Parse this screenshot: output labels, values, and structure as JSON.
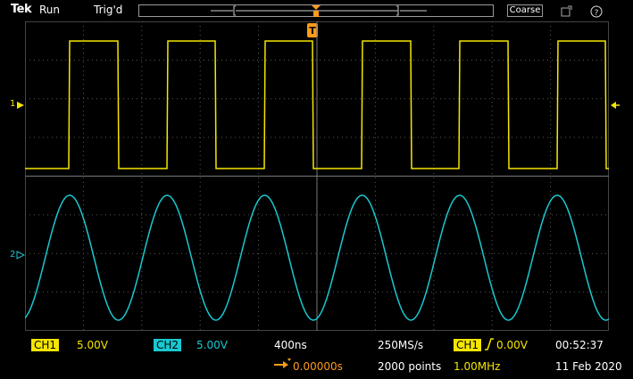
{
  "topbar": {
    "brand": "Tek",
    "acq_state": "Run",
    "trig_state": "Trig'd",
    "coarse_label": "Coarse"
  },
  "channels": {
    "ch1_marker": "1",
    "ch2_marker": "2"
  },
  "bottombar": {
    "ch1_label": "CH1",
    "ch1_scale": "5.00V",
    "ch2_label": "CH2",
    "ch2_scale": "5.00V",
    "timebase": "400ns",
    "delay": "0.00000s",
    "sample_rate": "250MS/s",
    "record_length": "2000 points",
    "trigger_source": "CH1",
    "trigger_level": "0.00V",
    "frequency": "1.00MHz",
    "time": "00:52:37",
    "date": "11 Feb 2020"
  },
  "colors": {
    "ch1": "#f5e600",
    "ch2": "#19c8d0",
    "trigger": "#ff9a1a",
    "grid": "#5a5a5a"
  }
}
